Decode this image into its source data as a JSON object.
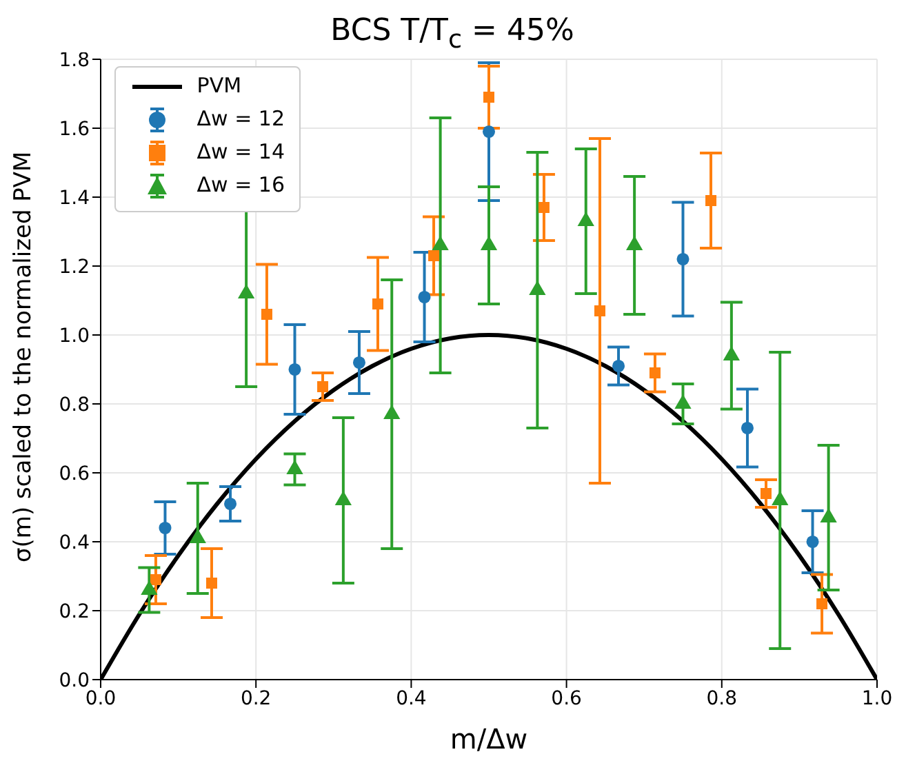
{
  "chart_data": {
    "type": "scatter",
    "title": "BCS T/T$_{c}$ = 45%",
    "xlabel": "m/Δw",
    "ylabel": "σ(m) scaled to the normalized PVM",
    "xlim": [
      0,
      1
    ],
    "ylim": [
      0,
      1.8
    ],
    "xticks": [
      {
        "value": 0,
        "label": "0.0"
      },
      {
        "value": 0.2,
        "label": "0.2"
      },
      {
        "value": 0.4,
        "label": "0.4"
      },
      {
        "value": 0.6,
        "label": "0.6"
      },
      {
        "value": 0.8,
        "label": "0.8"
      },
      {
        "value": 1,
        "label": "1.0"
      }
    ],
    "yticks": [
      {
        "value": 0,
        "label": "0.0"
      },
      {
        "value": 0.2,
        "label": "0.2"
      },
      {
        "value": 0.4,
        "label": "0.4"
      },
      {
        "value": 0.6,
        "label": "0.6"
      },
      {
        "value": 0.8,
        "label": "0.8"
      },
      {
        "value": 1,
        "label": "1.0"
      },
      {
        "value": 1.2,
        "label": "1.2"
      },
      {
        "value": 1.4,
        "label": "1.4"
      },
      {
        "value": 1.6,
        "label": "1.6"
      },
      {
        "value": 1.8,
        "label": "1.8"
      }
    ],
    "grid": true,
    "legend": "top left",
    "series": [
      {
        "name": "PVM",
        "type": "line",
        "color": "#000000",
        "marker": "none",
        "x": [
          0,
          0.05,
          0.1,
          0.15,
          0.2,
          0.25,
          0.3,
          0.35,
          0.4,
          0.45,
          0.5,
          0.55,
          0.6,
          0.65,
          0.7,
          0.75,
          0.8,
          0.85,
          0.9,
          0.95,
          1
        ],
        "values": [
          0,
          0.19,
          0.36,
          0.51,
          0.64,
          0.75,
          0.84,
          0.91,
          0.96,
          0.99,
          1,
          0.99,
          0.96,
          0.91,
          0.84,
          0.75,
          0.64,
          0.51,
          0.36,
          0.19,
          0
        ]
      },
      {
        "name": "Δw = 12",
        "color": "#1f77b4",
        "marker": "circle",
        "x": [
          0.083,
          0.167,
          0.25,
          0.333,
          0.417,
          0.5,
          0.583,
          0.667,
          0.75,
          0.833,
          0.917
        ],
        "values": [
          0.44,
          0.51,
          0.9,
          0.92,
          1.11,
          1.59,
          null,
          0.91,
          1.22,
          0.73,
          0.4
        ],
        "errors": [
          0.076,
          0.05,
          0.13,
          0.09,
          0.13,
          0.2,
          null,
          0.055,
          0.165,
          0.113,
          0.09
        ]
      },
      {
        "name": "Δw = 14",
        "color": "#ff7f0e",
        "marker": "square",
        "x": [
          0.071,
          0.143,
          0.214,
          0.286,
          0.357,
          0.429,
          0.5,
          0.571,
          0.643,
          0.714,
          0.786,
          0.857,
          0.929
        ],
        "values": [
          0.29,
          0.28,
          1.06,
          0.85,
          1.09,
          1.23,
          1.69,
          1.37,
          1.07,
          0.89,
          1.39,
          0.54,
          0.22
        ],
        "errors": [
          0.07,
          0.1,
          0.145,
          0.04,
          0.135,
          0.113,
          0.09,
          0.096,
          0.5,
          0.055,
          0.138,
          0.04,
          0.085
        ]
      },
      {
        "name": "Δw = 16",
        "color": "#2ca02c",
        "marker": "triangle",
        "x": [
          0.0625,
          0.125,
          0.1875,
          0.25,
          0.3125,
          0.375,
          0.4375,
          0.5,
          0.5625,
          0.625,
          0.6875,
          0.75,
          0.8125,
          0.875,
          0.9375
        ],
        "values": [
          0.26,
          0.41,
          1.12,
          0.61,
          0.52,
          0.77,
          1.26,
          1.26,
          1.13,
          1.33,
          1.26,
          0.8,
          0.94,
          0.52,
          0.47
        ],
        "errors": [
          0.065,
          0.16,
          0.27,
          0.045,
          0.24,
          0.39,
          0.37,
          0.17,
          0.4,
          0.21,
          0.2,
          0.058,
          0.155,
          0.43,
          0.21
        ]
      }
    ]
  }
}
